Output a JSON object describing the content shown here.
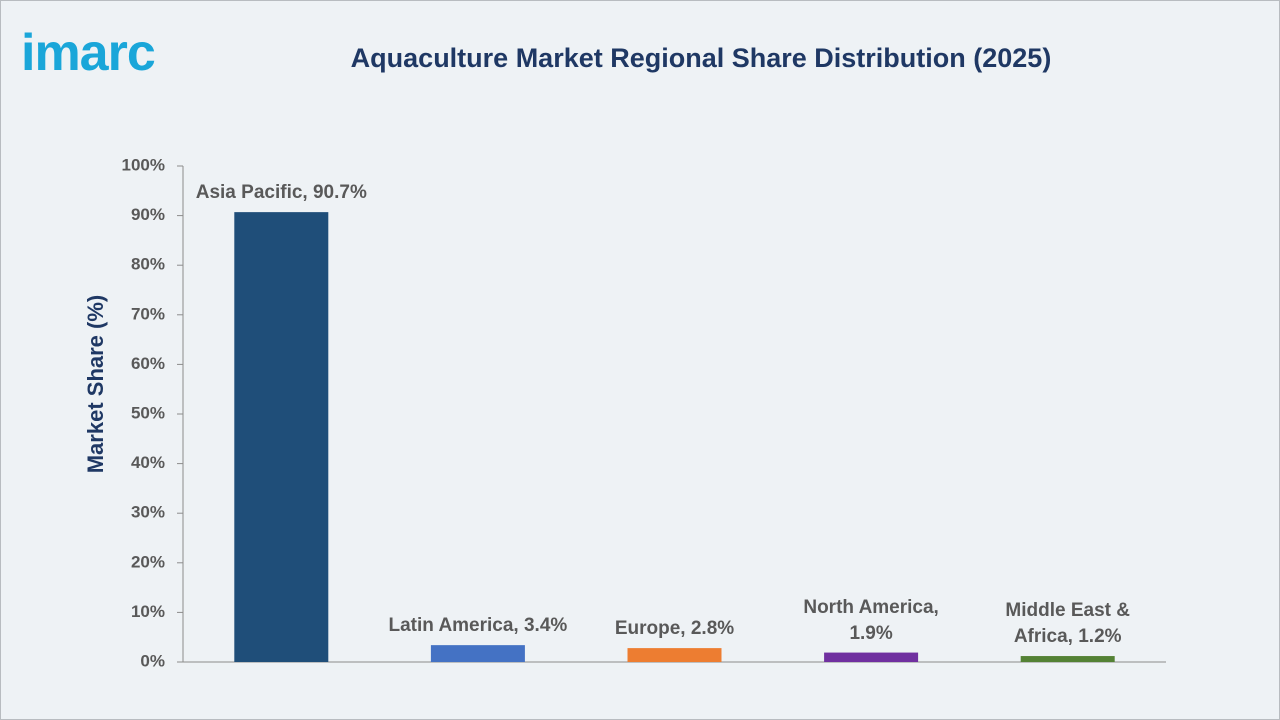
{
  "logo": "imarc",
  "chart_data": {
    "type": "bar",
    "title": "Aquaculture Market Regional Share Distribution (2025)",
    "y_label": "Market Share (%)",
    "values": [
      90.7,
      3.4,
      2.8,
      1.9,
      1.2
    ],
    "value_labels": [
      "Asia Pacific, 90.7%",
      "Latin America, 3.4%",
      "Europe, 2.8%",
      "North America,\n1.9%",
      "Middle East &\nAfrica, 1.2%"
    ],
    "colors": [
      "#1f4e79",
      "#4472c4",
      "#ed7d31",
      "#7030a0",
      "#548235"
    ],
    "ylim": [
      0,
      100
    ],
    "yticks": [
      {
        "value": 0,
        "label": "0%"
      },
      {
        "value": 10,
        "label": "10%"
      },
      {
        "value": 20,
        "label": "20%"
      },
      {
        "value": 30,
        "label": "30%"
      },
      {
        "value": 40,
        "label": "40%"
      },
      {
        "value": 50,
        "label": "50%"
      },
      {
        "value": 60,
        "label": "60%"
      },
      {
        "value": 70,
        "label": "70%"
      },
      {
        "value": 80,
        "label": "80%"
      },
      {
        "value": 90,
        "label": "90%"
      },
      {
        "value": 100,
        "label": "100%"
      }
    ],
    "grid": false
  }
}
